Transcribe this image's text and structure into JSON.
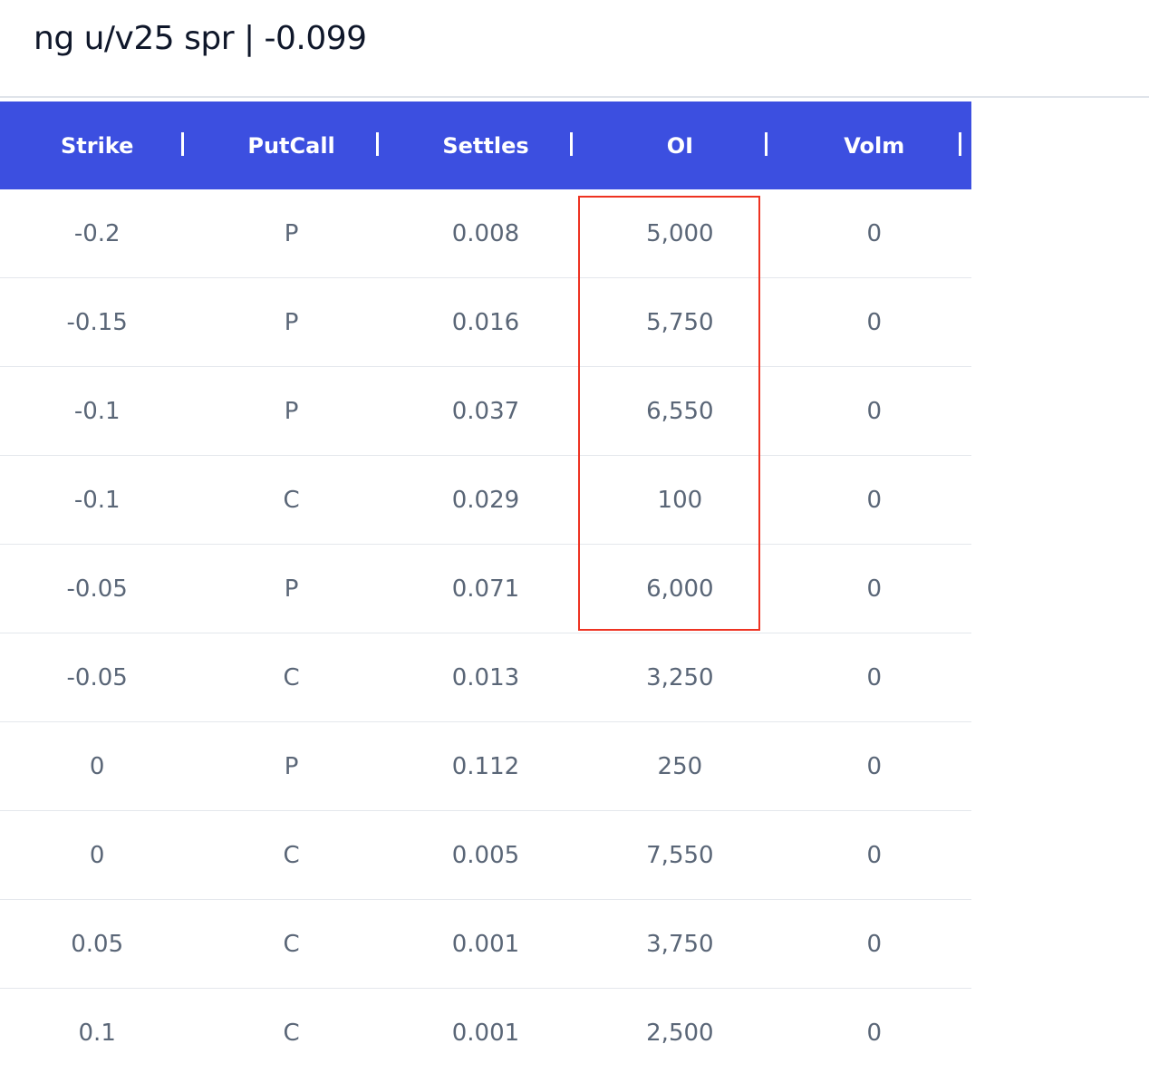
{
  "title": "ng u/v25 spr | -0.099",
  "table": {
    "columns": [
      "Strike",
      "PutCall",
      "Settles",
      "OI",
      "Volm"
    ],
    "rows": [
      [
        "-0.2",
        "P",
        "0.008",
        "5,000",
        "0"
      ],
      [
        "-0.15",
        "P",
        "0.016",
        "5,750",
        "0"
      ],
      [
        "-0.1",
        "P",
        "0.037",
        "6,550",
        "0"
      ],
      [
        "-0.1",
        "C",
        "0.029",
        "100",
        "0"
      ],
      [
        "-0.05",
        "P",
        "0.071",
        "6,000",
        "0"
      ],
      [
        "-0.05",
        "C",
        "0.013",
        "3,250",
        "0"
      ],
      [
        "0",
        "P",
        "0.112",
        "250",
        "0"
      ],
      [
        "0",
        "C",
        "0.005",
        "7,550",
        "0"
      ],
      [
        "0.05",
        "C",
        "0.001",
        "3,750",
        "0"
      ],
      [
        "0.1",
        "C",
        "0.001",
        "2,500",
        "0"
      ]
    ]
  },
  "colors": {
    "header_bg": "#3c4fe0",
    "highlight_border": "#ee3322"
  }
}
